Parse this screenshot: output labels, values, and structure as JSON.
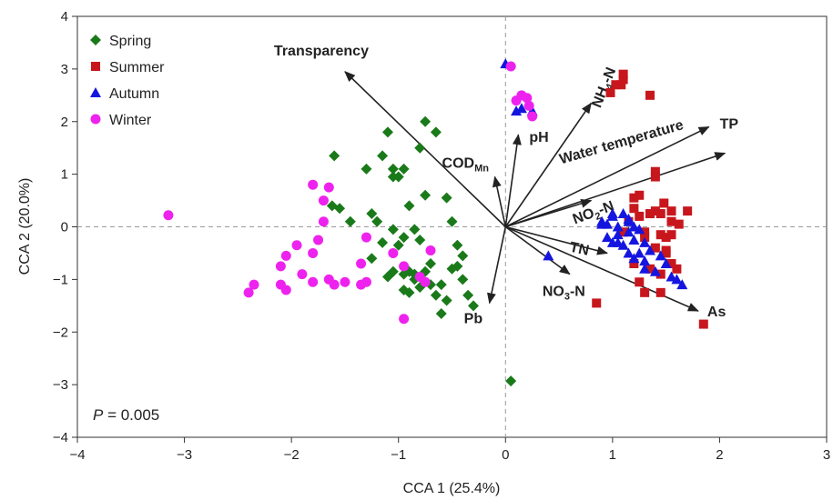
{
  "chart_data": {
    "type": "scatter",
    "title": "",
    "xlabel": "CCA 1 (25.4%)",
    "ylabel": "CCA 2 (20.0%)",
    "xlim": [
      -4,
      3
    ],
    "ylim": [
      -4,
      4
    ],
    "x_ticks": [
      "−4",
      "−3",
      "−2",
      "−1",
      "0",
      "1",
      "2",
      "3"
    ],
    "y_ticks": [
      "4",
      "3",
      "2",
      "1",
      "0",
      "−1",
      "−2",
      "−3",
      "−4"
    ],
    "x_tick_values": [
      -4,
      -3,
      -2,
      -1,
      0,
      1,
      2,
      3
    ],
    "y_tick_values": [
      4,
      3,
      2,
      1,
      0,
      -1,
      -2,
      -3,
      -4
    ],
    "reference_lines": {
      "x": 0,
      "y": 0,
      "style": "dashed"
    },
    "legend_position": "top-left",
    "annotation_p": "0.005",
    "series": [
      {
        "name": "Spring",
        "color": "#1a7a1a",
        "marker": "diamond",
        "points": [
          [
            -1.6,
            1.35
          ],
          [
            -1.55,
            0.35
          ],
          [
            -1.62,
            0.4
          ],
          [
            -1.45,
            0.1
          ],
          [
            -1.3,
            1.1
          ],
          [
            -1.15,
            1.35
          ],
          [
            -1.1,
            1.8
          ],
          [
            -1.05,
            1.1
          ],
          [
            -1.05,
            0.95
          ],
          [
            -1.25,
            0.25
          ],
          [
            -1.2,
            0.1
          ],
          [
            -1.15,
            -0.3
          ],
          [
            -1.05,
            -0.05
          ],
          [
            -1.0,
            -0.35
          ],
          [
            -1.0,
            0.95
          ],
          [
            -0.95,
            1.1
          ],
          [
            -0.9,
            -0.85
          ],
          [
            -1.05,
            -0.85
          ],
          [
            -0.95,
            -0.9
          ],
          [
            -0.85,
            -1.0
          ],
          [
            -0.75,
            -0.85
          ],
          [
            -0.7,
            -1.1
          ],
          [
            -0.65,
            -1.3
          ],
          [
            -0.6,
            -1.1
          ],
          [
            -0.55,
            -1.4
          ],
          [
            -0.5,
            -0.8
          ],
          [
            -0.45,
            -0.75
          ],
          [
            -0.4,
            -1.0
          ],
          [
            -0.35,
            -1.3
          ],
          [
            -0.3,
            -1.5
          ],
          [
            -0.95,
            -0.2
          ],
          [
            -0.85,
            -0.05
          ],
          [
            -0.8,
            -0.25
          ],
          [
            -0.75,
            0.6
          ],
          [
            -0.9,
            0.4
          ],
          [
            -0.8,
            1.5
          ],
          [
            -0.75,
            2.0
          ],
          [
            -0.65,
            1.8
          ],
          [
            -0.55,
            0.55
          ],
          [
            -0.5,
            0.1
          ],
          [
            -0.45,
            -0.35
          ],
          [
            -0.4,
            -0.55
          ],
          [
            -0.7,
            -0.7
          ],
          [
            -0.6,
            -1.65
          ],
          [
            -0.85,
            -0.9
          ],
          [
            -1.25,
            -0.6
          ],
          [
            -1.1,
            -0.95
          ],
          [
            -0.95,
            -1.2
          ],
          [
            -0.8,
            -1.15
          ],
          [
            -0.9,
            -1.25
          ],
          [
            0.05,
            -2.93
          ]
        ]
      },
      {
        "name": "Summer",
        "color": "#c8161d",
        "marker": "square",
        "points": [
          [
            0.98,
            2.55
          ],
          [
            1.03,
            2.7
          ],
          [
            1.08,
            2.7
          ],
          [
            1.1,
            2.8
          ],
          [
            1.1,
            2.9
          ],
          [
            1.35,
            2.5
          ],
          [
            1.4,
            1.05
          ],
          [
            1.4,
            0.95
          ],
          [
            1.25,
            0.6
          ],
          [
            1.2,
            0.55
          ],
          [
            1.2,
            0.35
          ],
          [
            1.25,
            0.2
          ],
          [
            1.35,
            0.25
          ],
          [
            1.45,
            0.25
          ],
          [
            1.55,
            0.3
          ],
          [
            1.62,
            0.05
          ],
          [
            1.7,
            0.3
          ],
          [
            1.15,
            0.1
          ],
          [
            1.3,
            -0.1
          ],
          [
            1.45,
            -0.15
          ],
          [
            1.5,
            -0.2
          ],
          [
            1.4,
            -0.4
          ],
          [
            1.5,
            -0.5
          ],
          [
            1.55,
            -0.7
          ],
          [
            1.45,
            -0.9
          ],
          [
            1.35,
            -0.8
          ],
          [
            1.2,
            -0.7
          ],
          [
            1.25,
            -1.05
          ],
          [
            1.3,
            -1.25
          ],
          [
            1.45,
            -1.25
          ],
          [
            1.5,
            -0.45
          ],
          [
            1.55,
            0.1
          ],
          [
            1.48,
            0.45
          ],
          [
            1.55,
            -0.15
          ],
          [
            0.85,
            -1.45
          ],
          [
            1.85,
            -1.85
          ],
          [
            1.3,
            -0.2
          ],
          [
            1.4,
            0.3
          ],
          [
            1.6,
            -0.8
          ],
          [
            1.1,
            -0.1
          ]
        ]
      },
      {
        "name": "Autumn",
        "color": "#1515e0",
        "marker": "triangle",
        "points": [
          [
            0.0,
            3.1
          ],
          [
            0.1,
            2.2
          ],
          [
            0.15,
            2.25
          ],
          [
            0.25,
            2.2
          ],
          [
            0.4,
            -0.55
          ],
          [
            0.9,
            0.1
          ],
          [
            0.95,
            0.05
          ],
          [
            1.0,
            0.2
          ],
          [
            1.05,
            0.0
          ],
          [
            0.95,
            -0.2
          ],
          [
            1.0,
            -0.3
          ],
          [
            1.05,
            -0.15
          ],
          [
            1.1,
            0.25
          ],
          [
            1.15,
            0.1
          ],
          [
            1.15,
            -0.1
          ],
          [
            1.2,
            0.0
          ],
          [
            1.05,
            -0.3
          ],
          [
            1.1,
            -0.35
          ],
          [
            1.15,
            -0.5
          ],
          [
            1.2,
            -0.25
          ],
          [
            1.2,
            -0.6
          ],
          [
            1.25,
            -0.5
          ],
          [
            1.3,
            -0.65
          ],
          [
            1.3,
            -0.8
          ],
          [
            1.4,
            -0.85
          ],
          [
            1.45,
            -0.55
          ],
          [
            1.5,
            -0.7
          ],
          [
            1.55,
            -0.95
          ],
          [
            1.6,
            -1.0
          ],
          [
            1.65,
            -1.1
          ],
          [
            1.3,
            -0.3
          ],
          [
            1.35,
            -0.45
          ],
          [
            1.25,
            -0.05
          ],
          [
            1.15,
            0.15
          ],
          [
            0.9,
            0.05
          ],
          [
            1.0,
            0.25
          ]
        ]
      },
      {
        "name": "Winter",
        "color": "#ee22ee",
        "marker": "circle",
        "points": [
          [
            -3.15,
            0.22
          ],
          [
            -2.4,
            -1.25
          ],
          [
            -2.35,
            -1.1
          ],
          [
            -2.1,
            -1.1
          ],
          [
            -2.05,
            -1.2
          ],
          [
            -2.1,
            -0.75
          ],
          [
            -2.05,
            -0.55
          ],
          [
            -1.95,
            -0.35
          ],
          [
            -1.9,
            -0.9
          ],
          [
            -1.8,
            -1.05
          ],
          [
            -1.8,
            -0.5
          ],
          [
            -1.75,
            -0.25
          ],
          [
            -1.7,
            0.1
          ],
          [
            -1.7,
            0.5
          ],
          [
            -1.65,
            0.75
          ],
          [
            -1.8,
            0.8
          ],
          [
            -1.65,
            -1.0
          ],
          [
            -1.5,
            -1.05
          ],
          [
            -1.35,
            -1.1
          ],
          [
            -1.3,
            -1.05
          ],
          [
            -1.35,
            -0.7
          ],
          [
            -1.3,
            -0.2
          ],
          [
            -1.05,
            -0.5
          ],
          [
            -0.95,
            -0.75
          ],
          [
            -0.95,
            -1.75
          ],
          [
            -1.6,
            -1.1
          ],
          [
            -0.8,
            -0.95
          ],
          [
            -0.75,
            -1.05
          ],
          [
            -0.7,
            -0.45
          ],
          [
            0.05,
            3.05
          ],
          [
            0.1,
            2.4
          ],
          [
            0.15,
            2.5
          ],
          [
            0.2,
            2.45
          ],
          [
            0.22,
            2.3
          ],
          [
            0.25,
            2.1
          ]
        ]
      }
    ],
    "vectors": [
      {
        "label": "Transparency",
        "x": -1.5,
        "y": 2.95,
        "color": "#222222",
        "label_style": "bold"
      },
      {
        "label": "COD",
        "sub": "Mn",
        "x": -0.1,
        "y": 0.95,
        "color": "#222222",
        "label_style": "bold"
      },
      {
        "label": "pH",
        "x": 0.12,
        "y": 1.75,
        "color": "#222222",
        "label_style": "bold"
      },
      {
        "label": "NH",
        "sub": "4",
        "tail": "-N",
        "x": 0.8,
        "y": 2.35,
        "color": "#222222",
        "label_style": "bold"
      },
      {
        "label": "TP",
        "x": 1.9,
        "y": 1.9,
        "color": "#222222",
        "label_style": "bold"
      },
      {
        "label": "Water temperature",
        "x": 2.05,
        "y": 1.4,
        "color": "#222222",
        "label_style": "bold"
      },
      {
        "label": "NO",
        "sub": "2",
        "tail": "-N",
        "x": 0.8,
        "y": 0.5,
        "color": "#222222",
        "label_style": "bold"
      },
      {
        "label": "TN",
        "x": 0.95,
        "y": -0.5,
        "color": "#222222",
        "label_style": "bold"
      },
      {
        "label": "NO",
        "sub": "3",
        "tail": "-N",
        "x": 0.6,
        "y": -0.9,
        "color": "#222222",
        "label_style": "bold"
      },
      {
        "label": "As",
        "x": 1.8,
        "y": -1.6,
        "color": "#222222",
        "label_style": "bold"
      },
      {
        "label": "Pb",
        "x": -0.15,
        "y": -1.45,
        "color": "#222222",
        "label_style": "bold"
      }
    ]
  }
}
